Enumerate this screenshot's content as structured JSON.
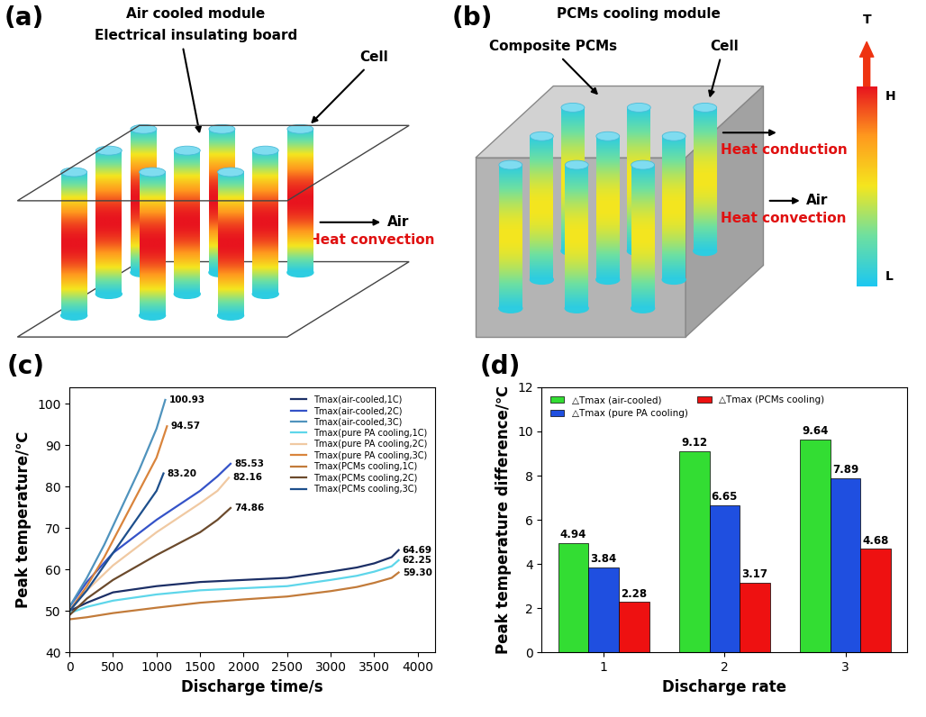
{
  "diagrams": [
    {
      "label": "(a)",
      "title": "Air cooled module",
      "board": "Electrical insulating board",
      "cell": "Cell",
      "flows": [
        {
          "text": "Heat convection",
          "target": "Air"
        }
      ]
    },
    {
      "label": "(b)",
      "title": "PCMs cooling module",
      "material": "Composite PCMs",
      "cell": "Cell",
      "flows": [
        {
          "text": "Heat conduction"
        },
        {
          "text": "Heat convection",
          "target": "Air"
        }
      ]
    }
  ],
  "color_scale": {
    "title": "T",
    "high": "H",
    "low": "L"
  },
  "chart_data": [
    {
      "type": "line",
      "title": "(c)",
      "x_label": "Discharge time/s",
      "y_label": "Peak temperature/℃",
      "xlim": [
        0,
        4200
      ],
      "xticks": [
        0,
        500,
        1000,
        1500,
        2000,
        2500,
        3000,
        3500,
        4000
      ],
      "ylim": [
        40,
        104
      ],
      "yticks": [
        40,
        50,
        60,
        70,
        80,
        90,
        100
      ],
      "legend": "upper right",
      "series": [
        {
          "name": "Tmax(air-cooled,1C)",
          "color": "#1c2f66",
          "x": [
            0,
            200,
            500,
            1000,
            1500,
            2000,
            2500,
            3000,
            3300,
            3500,
            3700,
            3780
          ],
          "values": [
            50,
            52,
            54.5,
            56,
            57,
            57.5,
            58,
            59.5,
            60.5,
            61.5,
            63,
            64.69
          ],
          "value_labels": [
            null,
            null,
            null,
            null,
            null,
            null,
            null,
            null,
            null,
            null,
            null,
            "64.69"
          ]
        },
        {
          "name": "Tmax(air-cooled,2C)",
          "color": "#3553c8",
          "x": [
            0,
            200,
            500,
            1000,
            1500,
            1700,
            1850
          ],
          "values": [
            51,
            57,
            64,
            72,
            79,
            82.5,
            85.53
          ],
          "value_labels": [
            null,
            null,
            null,
            null,
            null,
            null,
            "85.53"
          ]
        },
        {
          "name": "Tmax(air-cooled,3C)",
          "color": "#4f93bd",
          "x": [
            0,
            200,
            400,
            600,
            800,
            1000,
            1100
          ],
          "values": [
            51,
            58,
            66,
            75,
            84,
            94,
            100.93
          ],
          "value_labels": [
            null,
            null,
            null,
            null,
            null,
            null,
            "100.93"
          ]
        },
        {
          "name": "Tmax(pure PA cooling,1C)",
          "color": "#5ed6ea",
          "x": [
            0,
            200,
            500,
            1000,
            1500,
            2000,
            2500,
            3000,
            3300,
            3500,
            3700,
            3780
          ],
          "values": [
            49.5,
            51,
            52.5,
            54,
            55,
            55.5,
            56,
            57.5,
            58.5,
            59.5,
            60.8,
            62.25
          ],
          "value_labels": [
            null,
            null,
            null,
            null,
            null,
            null,
            null,
            null,
            null,
            null,
            null,
            "62.25"
          ]
        },
        {
          "name": "Tmax(pure PA cooling,2C)",
          "color": "#f0c9a2",
          "x": [
            0,
            200,
            500,
            1000,
            1500,
            1700,
            1830
          ],
          "values": [
            50,
            55,
            61,
            69,
            76,
            79,
            82.16
          ],
          "value_labels": [
            null,
            null,
            null,
            null,
            null,
            null,
            "82.16"
          ]
        },
        {
          "name": "Tmax(pure PA cooling,3C)",
          "color": "#d9843c",
          "x": [
            0,
            200,
            400,
            600,
            800,
            1000,
            1120
          ],
          "values": [
            50,
            56,
            63,
            71,
            79,
            87,
            94.57
          ],
          "value_labels": [
            null,
            null,
            null,
            null,
            null,
            null,
            "94.57"
          ]
        },
        {
          "name": "Tmax(PCMs cooling,1C)",
          "color": "#c27b3a",
          "x": [
            0,
            200,
            500,
            1000,
            1500,
            2000,
            2500,
            3000,
            3300,
            3500,
            3700,
            3780
          ],
          "values": [
            48,
            48.5,
            49.5,
            50.8,
            52,
            52.8,
            53.5,
            54.8,
            55.8,
            56.8,
            58,
            59.3
          ],
          "value_labels": [
            null,
            null,
            null,
            null,
            null,
            null,
            null,
            null,
            null,
            null,
            null,
            "59.30"
          ]
        },
        {
          "name": "Tmax(PCMs cooling,2C)",
          "color": "#6b4a2c",
          "x": [
            0,
            200,
            500,
            1000,
            1500,
            1700,
            1850
          ],
          "values": [
            49,
            53,
            57.5,
            63.5,
            69,
            72,
            74.86
          ],
          "value_labels": [
            null,
            null,
            null,
            null,
            null,
            null,
            "74.86"
          ]
        },
        {
          "name": "Tmax(PCMs cooling,3C)",
          "color": "#1d4f8c",
          "x": [
            0,
            200,
            400,
            600,
            800,
            1000,
            1080
          ],
          "values": [
            50,
            55,
            61,
            67,
            73,
            79,
            83.2
          ],
          "value_labels": [
            null,
            null,
            null,
            null,
            null,
            null,
            "83.20"
          ]
        }
      ]
    },
    {
      "type": "bar",
      "title": "(d)",
      "x_label": "Discharge rate",
      "y_label": "Peak temperature difference/℃",
      "categories": [
        "1",
        "2",
        "3"
      ],
      "ylim": [
        0,
        12
      ],
      "yticks": [
        0,
        2,
        4,
        6,
        8,
        10,
        12
      ],
      "legend": "upper left",
      "data_labels": true,
      "series": [
        {
          "name": "△Tmax (air-cooled)",
          "color": "#33dd33",
          "values": [
            4.94,
            9.12,
            9.64
          ]
        },
        {
          "name": "△Tmax (pure PA cooling)",
          "color": "#1f4fe0",
          "values": [
            3.84,
            6.65,
            7.89
          ]
        },
        {
          "name": "△Tmax (PCMs cooling)",
          "color": "#ee1111",
          "values": [
            2.28,
            3.17,
            4.68
          ]
        }
      ]
    }
  ]
}
